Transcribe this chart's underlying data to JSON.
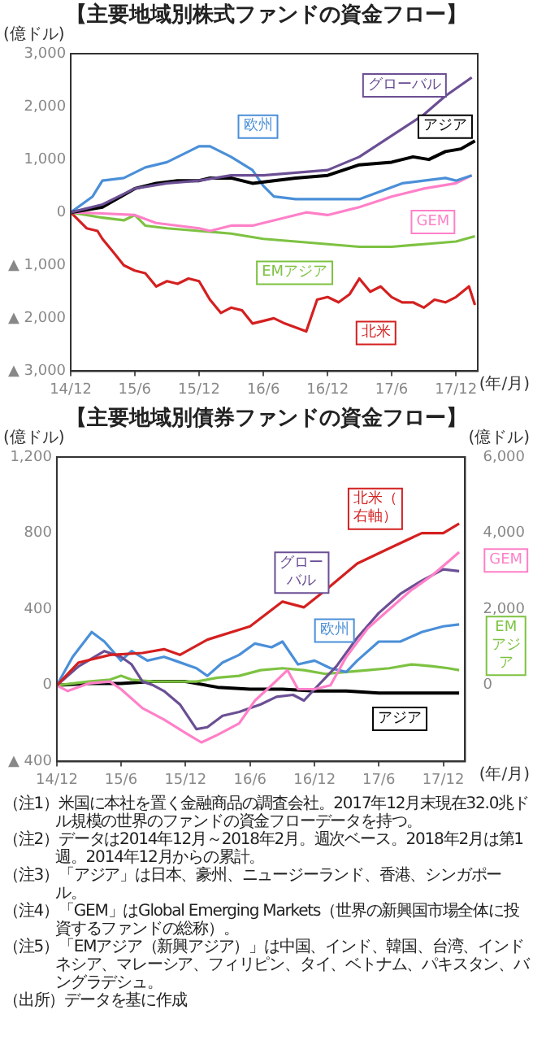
{
  "chart_data": [
    {
      "type": "line",
      "title": "【主要地域別株式ファンドの資金フロー】",
      "ylabel": "(億ドル)",
      "xlabel": "(年/月)",
      "marker": "none",
      "line_style": "solid",
      "grid": false,
      "legend": false,
      "xlim": [
        "2014-12",
        "2018-02"
      ],
      "xticks": [
        {
          "value": "2014-12",
          "label": "14/12"
        },
        {
          "value": "2015-06",
          "label": "15/6"
        },
        {
          "value": "2015-12",
          "label": "15/12"
        },
        {
          "value": "2016-06",
          "label": "16/6"
        },
        {
          "value": "2016-12",
          "label": "16/12"
        },
        {
          "value": "2017-06",
          "label": "17/6"
        },
        {
          "value": "2017-12",
          "label": "17/12"
        }
      ],
      "ylim": [
        -3000,
        3000
      ],
      "yticks": [
        {
          "value": -3000,
          "label": "▲ 3,000"
        },
        {
          "value": -2000,
          "label": "▲ 2,000"
        },
        {
          "value": -1000,
          "label": "▲ 1,000"
        },
        0,
        {
          "value": 1000,
          "label": "1,000"
        },
        {
          "value": 2000,
          "label": "2,000"
        },
        {
          "value": 3000,
          "label": "3,000"
        }
      ],
      "series": [
        {
          "name": "グローバル",
          "color": "#6b4f94",
          "x": [
            "2014-12",
            "2015-03",
            "2015-06",
            "2015-09",
            "2015-12",
            "2016-03",
            "2016-06",
            "2016-09",
            "2016-12",
            "2017-03",
            "2017-06",
            "2017-09",
            "2017-11",
            "2018-01-15"
          ],
          "values": [
            0,
            150,
            450,
            550,
            600,
            700,
            700,
            750,
            800,
            1050,
            1450,
            1850,
            2200,
            2550
          ]
        },
        {
          "name": "アジア",
          "color": "#000000",
          "x": [
            "2014-12",
            "2015-03",
            "2015-06",
            "2015-08",
            "2015-10",
            "2015-12",
            "2016-01",
            "2016-03",
            "2016-05",
            "2016-07",
            "2016-09",
            "2016-12",
            "2017-03",
            "2017-06",
            "2017-08",
            "2017-09-15",
            "2017-11",
            "2017-12-15",
            "2018-01-24"
          ],
          "values": [
            0,
            100,
            450,
            550,
            600,
            600,
            650,
            650,
            550,
            600,
            650,
            700,
            900,
            950,
            1050,
            1000,
            1150,
            1200,
            1350
          ]
        },
        {
          "name": "欧州",
          "color": "#4a8fd8",
          "x": [
            "2014-12",
            "2015-02",
            "2015-03",
            "2015-05",
            "2015-07",
            "2015-09",
            "2015-11",
            "2015-12",
            "2016-01",
            "2016-03",
            "2016-05",
            "2016-06",
            "2016-07",
            "2016-09",
            "2016-12",
            "2017-03",
            "2017-05",
            "2017-07",
            "2017-09",
            "2017-11",
            "2017-12",
            "2018-01-15"
          ],
          "values": [
            0,
            300,
            600,
            650,
            850,
            950,
            1150,
            1250,
            1250,
            1050,
            800,
            500,
            300,
            250,
            250,
            250,
            400,
            550,
            600,
            650,
            600,
            700
          ]
        },
        {
          "name": "GEM",
          "color": "#ff80c8",
          "x": [
            "2014-12",
            "2015-03",
            "2015-06",
            "2015-08",
            "2015-10",
            "2015-12",
            "2016-01",
            "2016-03",
            "2016-05",
            "2016-07",
            "2016-10",
            "2016-12",
            "2017-03",
            "2017-06",
            "2017-09",
            "2017-12",
            "2018-01-15"
          ],
          "values": [
            0,
            -20,
            -50,
            -200,
            -250,
            -300,
            -350,
            -250,
            -250,
            -150,
            0,
            -50,
            100,
            300,
            450,
            550,
            700
          ]
        },
        {
          "name": "EMアジア",
          "color": "#7dc242",
          "x": [
            "2014-12",
            "2015-03",
            "2015-05",
            "2015-06",
            "2015-07",
            "2015-09",
            "2015-12",
            "2016-03",
            "2016-06",
            "2016-09",
            "2016-12",
            "2017-03",
            "2017-06",
            "2017-09",
            "2017-12",
            "2018-01-24"
          ],
          "values": [
            0,
            -100,
            -150,
            -50,
            -250,
            -300,
            -350,
            -400,
            -500,
            -550,
            -600,
            -650,
            -650,
            -600,
            -550,
            -450
          ]
        },
        {
          "name": "北米",
          "color": "#d42020",
          "x": [
            "2014-12",
            "2015-01-15",
            "2015-02-15",
            "2015-03",
            "2015-04",
            "2015-05",
            "2015-06",
            "2015-07",
            "2015-08",
            "2015-09",
            "2015-10",
            "2015-11",
            "2015-12",
            "2016-01",
            "2016-02",
            "2016-03",
            "2016-04",
            "2016-05",
            "2016-06",
            "2016-07",
            "2016-08",
            "2016-10",
            "2016-11",
            "2016-12",
            "2017-01",
            "2017-02",
            "2017-03",
            "2017-04",
            "2017-05",
            "2017-06",
            "2017-07",
            "2017-08",
            "2017-09",
            "2017-10",
            "2017-11",
            "2017-12",
            "2018-01-07",
            "2018-01-24"
          ],
          "values": [
            0,
            -300,
            -350,
            -500,
            -750,
            -1000,
            -1100,
            -1150,
            -1400,
            -1300,
            -1350,
            -1250,
            -1300,
            -1650,
            -1900,
            -1800,
            -1850,
            -2100,
            -2050,
            -2000,
            -2100,
            -2250,
            -1650,
            -1600,
            -1700,
            -1550,
            -1250,
            -1500,
            -1400,
            -1600,
            -1700,
            -1700,
            -1800,
            -1650,
            -1700,
            -1600,
            -1400,
            -1750
          ]
        }
      ]
    },
    {
      "type": "line",
      "title": "【主要地域別債券ファンドの資金フロー】",
      "ylabel": "(億ドル)",
      "y2label": "(億ドル)",
      "xlabel": "(年/月)",
      "marker": "none",
      "line_style": "solid",
      "grid": false,
      "legend": false,
      "xlim": [
        "2014-12",
        "2018-02"
      ],
      "xticks": [
        {
          "value": "2014-12",
          "label": "14/12"
        },
        {
          "value": "2015-06",
          "label": "15/6"
        },
        {
          "value": "2015-12",
          "label": "15/12"
        },
        {
          "value": "2016-06",
          "label": "16/6"
        },
        {
          "value": "2016-12",
          "label": "16/12"
        },
        {
          "value": "2017-06",
          "label": "17/6"
        },
        {
          "value": "2017-12",
          "label": "17/12"
        }
      ],
      "ylim": [
        -400,
        1200
      ],
      "yticks": [
        {
          "value": -400,
          "label": "▲ 400"
        },
        0,
        400,
        800,
        {
          "value": 1200,
          "label": "1,200"
        }
      ],
      "y2lim": [
        -2000,
        6000
      ],
      "y2ticks": [
        0,
        {
          "value": 2000,
          "label": "2,000"
        },
        {
          "value": 4000,
          "label": "4,000"
        },
        {
          "value": 6000,
          "label": "6,000"
        }
      ],
      "series": [
        {
          "name": "北米（右軸）",
          "color": "#d42020",
          "axis": "y2",
          "x": [
            "2014-12",
            "2015-02",
            "2015-05",
            "2015-08",
            "2015-10",
            "2015-11-15",
            "2016-02",
            "2016-06",
            "2016-09",
            "2016-11",
            "2017-01",
            "2017-04",
            "2017-07",
            "2017-10",
            "2017-12",
            "2018-01-15"
          ],
          "values": [
            0,
            600,
            800,
            850,
            950,
            800,
            1200,
            1550,
            2200,
            2050,
            2500,
            3200,
            3600,
            4000,
            4000,
            4250
          ]
        },
        {
          "name": "GEM",
          "color": "#ff80c8",
          "x": [
            "2014-12",
            "2015-01",
            "2015-03",
            "2015-05",
            "2015-06",
            "2015-08",
            "2015-10",
            "2015-12",
            "2016-01-15",
            "2016-03",
            "2016-05",
            "2016-06-15",
            "2016-08",
            "2016-09-15",
            "2016-10-15",
            "2016-12",
            "2017-01-15",
            "2017-03",
            "2017-05",
            "2017-07",
            "2017-09",
            "2017-11",
            "2017-12-15",
            "2018-01-15"
          ],
          "values": [
            0,
            -30,
            10,
            20,
            -20,
            -120,
            -180,
            -250,
            -300,
            -260,
            -200,
            -80,
            0,
            80,
            -20,
            -20,
            0,
            150,
            300,
            400,
            500,
            580,
            650,
            700
          ]
        },
        {
          "name": "グローバル",
          "color": "#6b4f94",
          "x": [
            "2014-12",
            "2015-02",
            "2015-04-15",
            "2015-06",
            "2015-07",
            "2015-08",
            "2015-09",
            "2015-10",
            "2015-11-15",
            "2016-01",
            "2016-02",
            "2016-03-15",
            "2016-05",
            "2016-07",
            "2016-08-15",
            "2016-10",
            "2016-11",
            "2016-12",
            "2017-02",
            "2017-04",
            "2017-06",
            "2017-08",
            "2017-10",
            "2017-12",
            "2018-01-15"
          ],
          "values": [
            0,
            100,
            180,
            150,
            110,
            20,
            0,
            -30,
            -100,
            -230,
            -220,
            -160,
            -140,
            -100,
            -60,
            -50,
            -80,
            -20,
            100,
            250,
            380,
            480,
            550,
            610,
            600
          ]
        },
        {
          "name": "欧州",
          "color": "#4a8fd8",
          "x": [
            "2014-12",
            "2015-01-15",
            "2015-03-10",
            "2015-04-15",
            "2015-06",
            "2015-07",
            "2015-08-15",
            "2015-10",
            "2015-11",
            "2016-01",
            "2016-02",
            "2016-03-15",
            "2016-05",
            "2016-06-15",
            "2016-08",
            "2016-09",
            "2016-10-15",
            "2016-12",
            "2017-01-15",
            "2017-03",
            "2017-04",
            "2017-06",
            "2017-08",
            "2017-10",
            "2017-12",
            "2018-01-15"
          ],
          "values": [
            0,
            150,
            280,
            230,
            130,
            180,
            130,
            150,
            130,
            90,
            50,
            120,
            160,
            220,
            200,
            230,
            110,
            130,
            90,
            70,
            130,
            230,
            230,
            280,
            310,
            320
          ]
        },
        {
          "name": "EMアジア",
          "color": "#7dc242",
          "x": [
            "2014-12",
            "2015-03",
            "2015-05",
            "2015-06",
            "2015-07",
            "2015-09",
            "2015-11",
            "2016-01",
            "2016-03",
            "2016-05",
            "2016-07",
            "2016-09",
            "2016-11",
            "2017-01",
            "2017-03",
            "2017-05",
            "2017-07",
            "2017-09",
            "2017-11",
            "2017-12-15",
            "2018-01-15"
          ],
          "values": [
            0,
            20,
            30,
            50,
            30,
            20,
            20,
            20,
            40,
            50,
            80,
            90,
            80,
            60,
            70,
            80,
            90,
            110,
            100,
            90,
            80
          ]
        },
        {
          "name": "アジア",
          "color": "#000000",
          "x": [
            "2014-12",
            "2015-03",
            "2015-06",
            "2015-09",
            "2015-12",
            "2016-03",
            "2016-06",
            "2016-09",
            "2016-12",
            "2017-03",
            "2017-06",
            "2017-09",
            "2017-12",
            "2018-01-15"
          ],
          "values": [
            0,
            10,
            10,
            20,
            20,
            -10,
            -20,
            -20,
            -30,
            -30,
            -40,
            -40,
            -40,
            -40
          ]
        }
      ],
      "annotations": [
        "（注1）米国に本社を置く金融商品の調査会社。2017年12月末現在32.0兆ドル規模の世界のファンドの資金フローデータを持つ。",
        "（注2）データは2014年12月～2018年2月。週次ベース。2018年2月は第1週。2014年12月からの累計。",
        "（注3）「アジア」は日本、豪州、ニュージーランド、香港、シンガポール。",
        "（注4）「GEM」はGlobal Emerging Markets（世界の新興国市場全体に投資するファンドの総称）。",
        "（注5）「EMアジア（新興アジア）」は中国、インド、韓国、台湾、インドネシア、マレーシア、フィリピン、タイ、ベトナム、パキスタン、バングラデシュ。",
        "（出所）データを基に作成"
      ]
    }
  ]
}
